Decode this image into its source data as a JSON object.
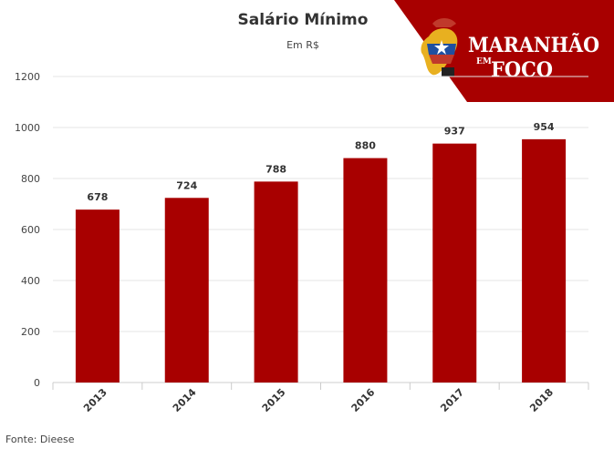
{
  "chart_data": {
    "type": "bar",
    "title": "Salário Mínimo",
    "subtitle": "Em R$",
    "categories": [
      "2013",
      "2014",
      "2015",
      "2016",
      "2017",
      "2018"
    ],
    "values": [
      678,
      724,
      788,
      880,
      937,
      954
    ],
    "data_labels": [
      "678",
      "724",
      "788",
      "880",
      "937",
      "954"
    ],
    "ylim": [
      0,
      1200
    ],
    "yticks": [
      "0",
      "200",
      "400",
      "600",
      "800",
      "1000",
      "1200"
    ],
    "grid": true,
    "legend": "none",
    "bar_color": "#a80000"
  },
  "source": "Fonte: Dieese",
  "logo": {
    "line1": "MARANHÃO",
    "line2": "EM",
    "line3": "FOCO",
    "banner_color": "#a80000"
  }
}
